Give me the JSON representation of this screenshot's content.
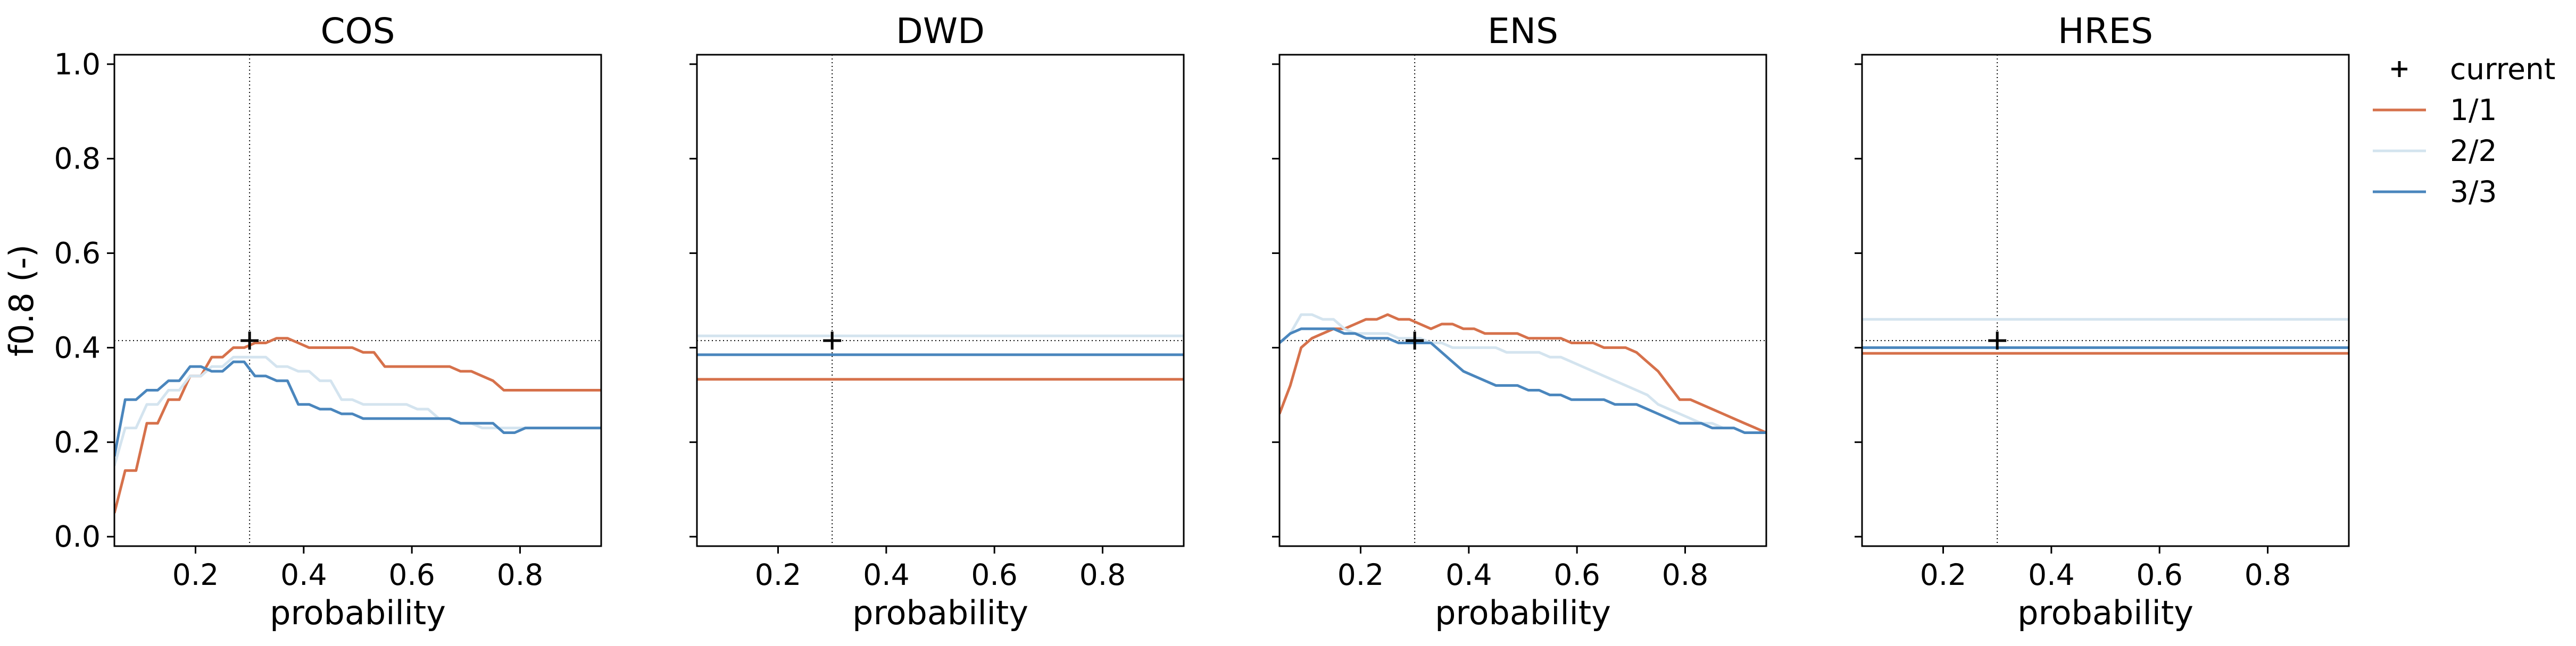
{
  "chart_data": {
    "type": "line",
    "ylabel": "f0.8 (-)",
    "xlabel": "probability",
    "xlim": [
      0.05,
      0.95
    ],
    "ylim": [
      -0.02,
      1.02
    ],
    "xticks": [
      "0.2",
      "0.4",
      "0.6",
      "0.8"
    ],
    "yticks": [
      "0.0",
      "0.2",
      "0.4",
      "0.6",
      "0.8",
      "1.0"
    ],
    "grid": false,
    "legend_position": "outside-right",
    "reference": {
      "x": 0.3,
      "y": 0.415
    },
    "legend": [
      {
        "key": "current",
        "label": "current",
        "marker": "+",
        "color": "#000000"
      },
      {
        "key": "s1",
        "label": "1/1",
        "color": "#d6714b"
      },
      {
        "key": "s2",
        "label": "2/2",
        "color": "#d4e4ef"
      },
      {
        "key": "s3",
        "label": "3/3",
        "color": "#4a86bd"
      }
    ],
    "panels": [
      {
        "title": "COS",
        "current": [
          0.3,
          0.415
        ],
        "series": [
          {
            "label": "1/1",
            "color": "#d6714b",
            "x": [
              0.05,
              0.07,
              0.09,
              0.11,
              0.13,
              0.15,
              0.17,
              0.19,
              0.21,
              0.23,
              0.25,
              0.27,
              0.29,
              0.31,
              0.33,
              0.35,
              0.37,
              0.39,
              0.41,
              0.43,
              0.45,
              0.47,
              0.49,
              0.51,
              0.53,
              0.55,
              0.57,
              0.59,
              0.61,
              0.63,
              0.65,
              0.67,
              0.69,
              0.71,
              0.73,
              0.75,
              0.77,
              0.79,
              0.81,
              0.83,
              0.85,
              0.87,
              0.89,
              0.91,
              0.93,
              0.95
            ],
            "y": [
              0.05,
              0.14,
              0.14,
              0.24,
              0.24,
              0.29,
              0.29,
              0.34,
              0.34,
              0.38,
              0.38,
              0.4,
              0.4,
              0.41,
              0.41,
              0.42,
              0.42,
              0.41,
              0.4,
              0.4,
              0.4,
              0.4,
              0.4,
              0.39,
              0.39,
              0.36,
              0.36,
              0.36,
              0.36,
              0.36,
              0.36,
              0.36,
              0.35,
              0.35,
              0.34,
              0.33,
              0.31,
              0.31,
              0.31,
              0.31,
              0.31,
              0.31,
              0.31,
              0.31,
              0.31,
              0.31
            ]
          },
          {
            "label": "2/2",
            "color": "#d4e4ef",
            "x": [
              0.05,
              0.07,
              0.09,
              0.11,
              0.13,
              0.15,
              0.17,
              0.19,
              0.21,
              0.23,
              0.25,
              0.27,
              0.29,
              0.31,
              0.33,
              0.35,
              0.37,
              0.39,
              0.41,
              0.43,
              0.45,
              0.47,
              0.49,
              0.51,
              0.53,
              0.55,
              0.57,
              0.59,
              0.61,
              0.63,
              0.65,
              0.67,
              0.69,
              0.71,
              0.73,
              0.75,
              0.77,
              0.79,
              0.81,
              0.83,
              0.85,
              0.87,
              0.89,
              0.91,
              0.93,
              0.95
            ],
            "y": [
              0.15,
              0.23,
              0.23,
              0.28,
              0.28,
              0.31,
              0.31,
              0.34,
              0.34,
              0.36,
              0.36,
              0.38,
              0.38,
              0.38,
              0.38,
              0.36,
              0.36,
              0.35,
              0.35,
              0.33,
              0.33,
              0.29,
              0.29,
              0.28,
              0.28,
              0.28,
              0.28,
              0.28,
              0.27,
              0.27,
              0.25,
              0.25,
              0.24,
              0.24,
              0.23,
              0.23,
              0.23,
              0.23,
              0.23,
              0.23,
              0.23,
              0.23,
              0.23,
              0.23,
              0.23,
              0.23
            ]
          },
          {
            "label": "3/3",
            "color": "#4a86bd",
            "x": [
              0.05,
              0.07,
              0.09,
              0.11,
              0.13,
              0.15,
              0.17,
              0.19,
              0.21,
              0.23,
              0.25,
              0.27,
              0.29,
              0.31,
              0.33,
              0.35,
              0.37,
              0.39,
              0.41,
              0.43,
              0.45,
              0.47,
              0.49,
              0.51,
              0.53,
              0.55,
              0.57,
              0.59,
              0.61,
              0.63,
              0.65,
              0.67,
              0.69,
              0.71,
              0.73,
              0.75,
              0.77,
              0.79,
              0.81,
              0.83,
              0.85,
              0.87,
              0.89,
              0.91,
              0.93,
              0.95
            ],
            "y": [
              0.17,
              0.29,
              0.29,
              0.31,
              0.31,
              0.33,
              0.33,
              0.36,
              0.36,
              0.35,
              0.35,
              0.37,
              0.37,
              0.34,
              0.34,
              0.33,
              0.33,
              0.28,
              0.28,
              0.27,
              0.27,
              0.26,
              0.26,
              0.25,
              0.25,
              0.25,
              0.25,
              0.25,
              0.25,
              0.25,
              0.25,
              0.25,
              0.24,
              0.24,
              0.24,
              0.24,
              0.22,
              0.22,
              0.23,
              0.23,
              0.23,
              0.23,
              0.23,
              0.23,
              0.23,
              0.23
            ]
          }
        ]
      },
      {
        "title": "DWD",
        "current": [
          0.3,
          0.415
        ],
        "series": [
          {
            "label": "1/1",
            "color": "#d6714b",
            "x": [
              0.05,
              0.95
            ],
            "y": [
              0.333,
              0.333
            ]
          },
          {
            "label": "2/2",
            "color": "#d4e4ef",
            "x": [
              0.05,
              0.95
            ],
            "y": [
              0.425,
              0.425
            ]
          },
          {
            "label": "3/3",
            "color": "#4a86bd",
            "x": [
              0.05,
              0.95
            ],
            "y": [
              0.385,
              0.385
            ]
          }
        ]
      },
      {
        "title": "ENS",
        "current": [
          0.3,
          0.415
        ],
        "series": [
          {
            "label": "1/1",
            "color": "#d6714b",
            "x": [
              0.05,
              0.07,
              0.09,
              0.11,
              0.13,
              0.15,
              0.17,
              0.19,
              0.21,
              0.23,
              0.25,
              0.27,
              0.29,
              0.31,
              0.33,
              0.35,
              0.37,
              0.39,
              0.41,
              0.43,
              0.45,
              0.47,
              0.49,
              0.51,
              0.53,
              0.55,
              0.57,
              0.59,
              0.61,
              0.63,
              0.65,
              0.67,
              0.69,
              0.71,
              0.73,
              0.75,
              0.77,
              0.79,
              0.81,
              0.83,
              0.85,
              0.87,
              0.89,
              0.91,
              0.93,
              0.95
            ],
            "y": [
              0.26,
              0.32,
              0.4,
              0.42,
              0.43,
              0.44,
              0.44,
              0.45,
              0.46,
              0.46,
              0.47,
              0.46,
              0.46,
              0.45,
              0.44,
              0.45,
              0.45,
              0.44,
              0.44,
              0.43,
              0.43,
              0.43,
              0.43,
              0.42,
              0.42,
              0.42,
              0.42,
              0.41,
              0.41,
              0.41,
              0.4,
              0.4,
              0.4,
              0.39,
              0.37,
              0.35,
              0.32,
              0.29,
              0.29,
              0.28,
              0.27,
              0.26,
              0.25,
              0.24,
              0.23,
              0.22
            ]
          },
          {
            "label": "2/2",
            "color": "#d4e4ef",
            "x": [
              0.05,
              0.07,
              0.09,
              0.11,
              0.13,
              0.15,
              0.17,
              0.19,
              0.21,
              0.23,
              0.25,
              0.27,
              0.29,
              0.31,
              0.33,
              0.35,
              0.37,
              0.39,
              0.41,
              0.43,
              0.45,
              0.47,
              0.49,
              0.51,
              0.53,
              0.55,
              0.57,
              0.59,
              0.61,
              0.63,
              0.65,
              0.67,
              0.69,
              0.71,
              0.73,
              0.75,
              0.77,
              0.79,
              0.81,
              0.83,
              0.85,
              0.87,
              0.89,
              0.91,
              0.93,
              0.95
            ],
            "y": [
              0.41,
              0.43,
              0.47,
              0.47,
              0.46,
              0.46,
              0.44,
              0.43,
              0.43,
              0.43,
              0.43,
              0.42,
              0.42,
              0.42,
              0.41,
              0.41,
              0.4,
              0.4,
              0.4,
              0.4,
              0.4,
              0.39,
              0.39,
              0.39,
              0.39,
              0.38,
              0.38,
              0.37,
              0.36,
              0.35,
              0.34,
              0.33,
              0.32,
              0.31,
              0.3,
              0.28,
              0.27,
              0.26,
              0.25,
              0.24,
              0.24,
              0.23,
              0.23,
              0.22,
              0.22,
              0.22
            ]
          },
          {
            "label": "3/3",
            "color": "#4a86bd",
            "x": [
              0.05,
              0.07,
              0.09,
              0.11,
              0.13,
              0.15,
              0.17,
              0.19,
              0.21,
              0.23,
              0.25,
              0.27,
              0.29,
              0.31,
              0.33,
              0.35,
              0.37,
              0.39,
              0.41,
              0.43,
              0.45,
              0.47,
              0.49,
              0.51,
              0.53,
              0.55,
              0.57,
              0.59,
              0.61,
              0.63,
              0.65,
              0.67,
              0.69,
              0.71,
              0.73,
              0.75,
              0.77,
              0.79,
              0.81,
              0.83,
              0.85,
              0.87,
              0.89,
              0.91,
              0.93,
              0.95
            ],
            "y": [
              0.41,
              0.43,
              0.44,
              0.44,
              0.44,
              0.44,
              0.43,
              0.43,
              0.42,
              0.42,
              0.42,
              0.41,
              0.41,
              0.41,
              0.41,
              0.39,
              0.37,
              0.35,
              0.34,
              0.33,
              0.32,
              0.32,
              0.32,
              0.31,
              0.31,
              0.3,
              0.3,
              0.29,
              0.29,
              0.29,
              0.29,
              0.28,
              0.28,
              0.28,
              0.27,
              0.26,
              0.25,
              0.24,
              0.24,
              0.24,
              0.23,
              0.23,
              0.23,
              0.22,
              0.22,
              0.22
            ]
          }
        ]
      },
      {
        "title": "HRES",
        "current": [
          0.3,
          0.415
        ],
        "series": [
          {
            "label": "1/1",
            "color": "#d6714b",
            "x": [
              0.05,
              0.95
            ],
            "y": [
              0.388,
              0.388
            ]
          },
          {
            "label": "2/2",
            "color": "#d4e4ef",
            "x": [
              0.05,
              0.95
            ],
            "y": [
              0.46,
              0.46
            ]
          },
          {
            "label": "3/3",
            "color": "#4a86bd",
            "x": [
              0.05,
              0.95
            ],
            "y": [
              0.4,
              0.4
            ]
          }
        ]
      }
    ]
  }
}
